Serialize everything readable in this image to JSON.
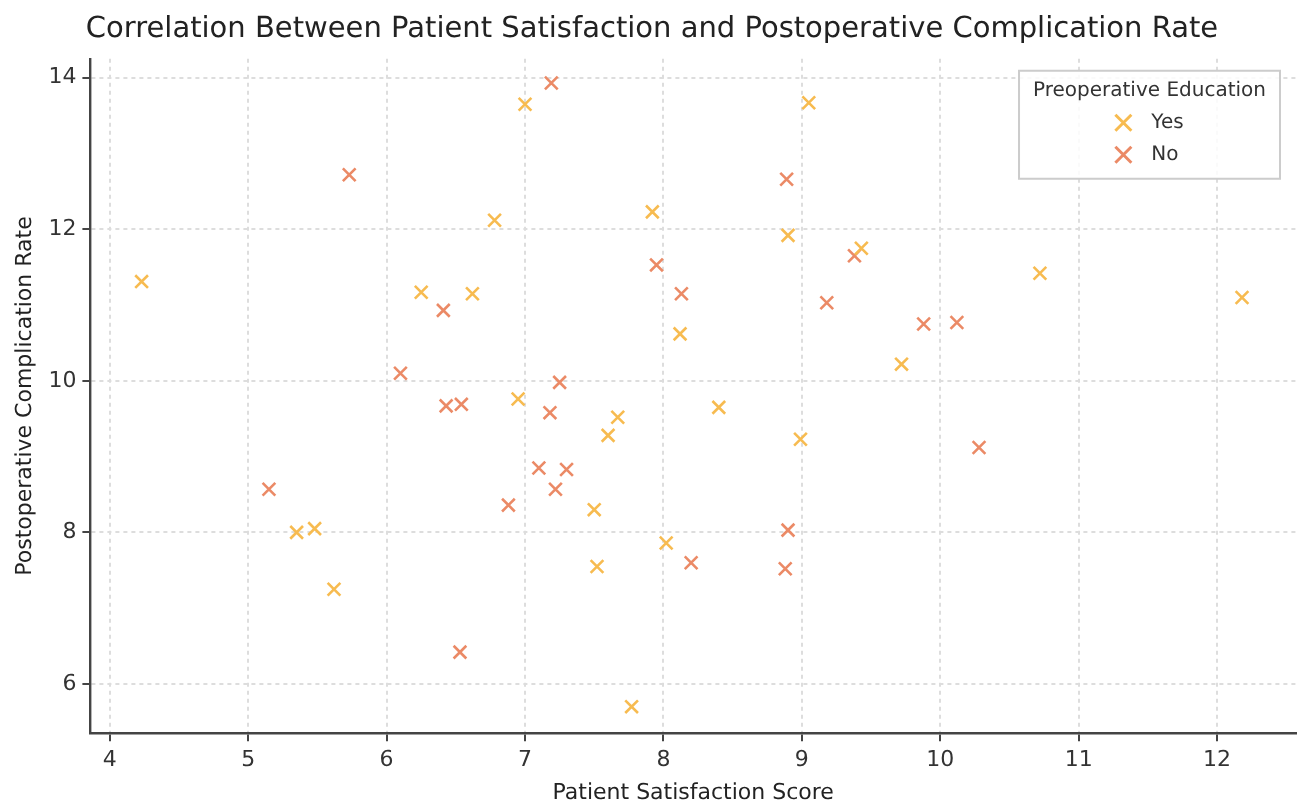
{
  "chart_data": {
    "type": "scatter",
    "title": "Correlation Between Patient Satisfaction and Postoperative Complication Rate",
    "xlabel": "Patient Satisfaction Score",
    "ylabel": "Postoperative Complication Rate",
    "legend_title": "Preoperative Education",
    "legend": "top right",
    "grid": true,
    "marker": "cross",
    "xlim": [
      3.86,
      12.57
    ],
    "xticks": [
      4,
      5,
      6,
      7,
      8,
      9,
      10,
      11,
      12
    ],
    "ylim": [
      5.35,
      14.25
    ],
    "yticks": [
      6,
      8,
      10,
      12,
      14
    ],
    "series": [
      {
        "name": "Yes",
        "color": "#f7bb50",
        "x": [
          4.23,
          5.35,
          5.48,
          5.62,
          6.25,
          6.62,
          6.78,
          6.95,
          7.0,
          7.5,
          7.52,
          7.6,
          7.67,
          7.77,
          7.92,
          8.02,
          8.12,
          8.4,
          8.9,
          9.05,
          8.99,
          9.43,
          9.72,
          10.72,
          12.18
        ],
        "values": [
          11.31,
          8.0,
          8.05,
          7.25,
          11.17,
          11.15,
          12.12,
          9.76,
          13.65,
          8.3,
          7.55,
          9.28,
          9.52,
          5.7,
          12.23,
          7.86,
          10.62,
          9.65,
          11.92,
          13.67,
          9.23,
          11.75,
          10.22,
          11.42,
          11.1
        ]
      },
      {
        "name": "No",
        "color": "#eb8a66",
        "x": [
          5.15,
          5.73,
          6.1,
          6.41,
          6.43,
          6.54,
          6.53,
          6.88,
          7.1,
          7.18,
          7.22,
          7.25,
          7.3,
          7.19,
          7.95,
          8.13,
          8.2,
          8.89,
          8.9,
          8.88,
          9.18,
          9.38,
          9.88,
          10.12,
          10.28
        ],
        "values": [
          8.57,
          12.72,
          10.1,
          10.93,
          9.67,
          9.69,
          6.42,
          8.36,
          8.85,
          9.58,
          8.57,
          9.98,
          8.83,
          13.93,
          11.53,
          11.15,
          7.6,
          12.66,
          8.03,
          7.52,
          11.03,
          11.65,
          10.75,
          10.77,
          9.12
        ]
      }
    ]
  }
}
